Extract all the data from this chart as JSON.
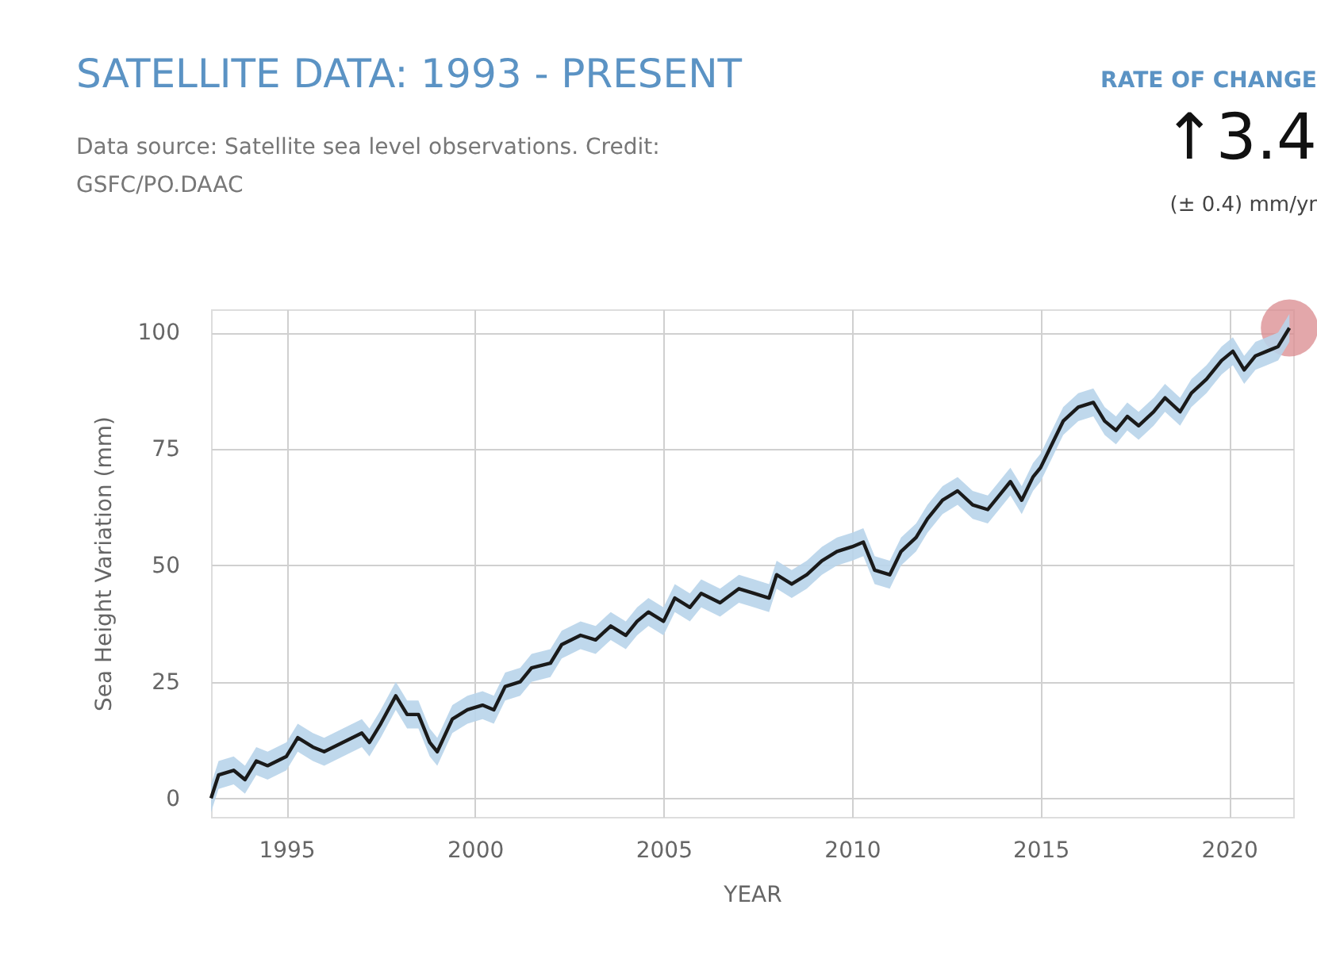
{
  "chart_data": {
    "type": "line",
    "title": "SATELLITE DATA: 1993 - PRESENT",
    "subtitle": "Data source: Satellite sea level observations. Credit: GSFC/PO.DAAC",
    "xlabel": "YEAR",
    "ylabel": "Sea Height Variation (mm)",
    "annotations": [
      "RATE OF CHANGE",
      "↑3.4",
      "(± 0.4) mm/yr"
    ],
    "series": [
      {
        "type": "line",
        "color": "#1a1a1a",
        "x": [
          1993.0,
          1993.2,
          1993.6,
          1993.9,
          1994.2,
          1994.5,
          1995.0,
          1995.3,
          1995.7,
          1996.0,
          1996.5,
          1997.0,
          1997.2,
          1997.5,
          1997.9,
          1998.2,
          1998.5,
          1998.8,
          1999.0,
          1999.4,
          1999.8,
          2000.2,
          2000.5,
          2000.8,
          2001.2,
          2001.5,
          2002.0,
          2002.3,
          2002.8,
          2003.2,
          2003.6,
          2004.0,
          2004.3,
          2004.6,
          2005.0,
          2005.3,
          2005.7,
          2006.0,
          2006.5,
          2007.0,
          2007.4,
          2007.8,
          2008.0,
          2008.4,
          2008.8,
          2009.2,
          2009.6,
          2010.0,
          2010.3,
          2010.6,
          2011.0,
          2011.3,
          2011.7,
          2012.0,
          2012.4,
          2012.8,
          2013.2,
          2013.6,
          2013.9,
          2014.2,
          2014.5,
          2014.8,
          2015.0,
          2015.3,
          2015.6,
          2016.0,
          2016.4,
          2016.7,
          2017.0,
          2017.3,
          2017.6,
          2018.0,
          2018.3,
          2018.7,
          2019.0,
          2019.4,
          2019.8,
          2020.1,
          2020.4,
          2020.7,
          2021.0,
          2021.3,
          2021.6
        ],
        "values": [
          0,
          5,
          6,
          4,
          8,
          7,
          9,
          13,
          11,
          10,
          12,
          14,
          12,
          16,
          22,
          18,
          18,
          12,
          10,
          17,
          19,
          20,
          19,
          24,
          25,
          28,
          29,
          33,
          35,
          34,
          37,
          35,
          38,
          40,
          38,
          43,
          41,
          44,
          42,
          45,
          44,
          43,
          48,
          46,
          48,
          51,
          53,
          54,
          55,
          49,
          48,
          53,
          56,
          60,
          64,
          66,
          63,
          62,
          65,
          68,
          64,
          69,
          71,
          76,
          81,
          84,
          85,
          81,
          79,
          82,
          80,
          83,
          86,
          83,
          87,
          90,
          94,
          96,
          92,
          95,
          96,
          97,
          101
        ],
        "lower": [
          -3,
          2,
          3,
          1,
          5,
          4,
          6,
          10,
          8,
          7,
          9,
          11,
          9,
          13,
          19,
          15,
          15,
          9,
          7,
          14,
          16,
          17,
          16,
          21,
          22,
          25,
          26,
          30,
          32,
          31,
          34,
          32,
          35,
          37,
          35,
          40,
          38,
          41,
          39,
          42,
          41,
          40,
          45,
          43,
          45,
          48,
          50,
          51,
          52,
          46,
          45,
          50,
          53,
          57,
          61,
          63,
          60,
          59,
          62,
          65,
          61,
          66,
          68,
          73,
          78,
          81,
          82,
          78,
          76,
          79,
          77,
          80,
          83,
          80,
          84,
          87,
          91,
          93,
          89,
          92,
          93,
          94,
          98
        ],
        "upper": [
          3,
          8,
          9,
          7,
          11,
          10,
          12,
          16,
          14,
          13,
          15,
          17,
          15,
          19,
          25,
          21,
          21,
          15,
          13,
          20,
          22,
          23,
          22,
          27,
          28,
          31,
          32,
          36,
          38,
          37,
          40,
          38,
          41,
          43,
          41,
          46,
          44,
          47,
          45,
          48,
          47,
          46,
          51,
          49,
          51,
          54,
          56,
          57,
          58,
          52,
          51,
          56,
          59,
          63,
          67,
          69,
          66,
          65,
          68,
          71,
          67,
          72,
          74,
          79,
          84,
          87,
          88,
          84,
          82,
          85,
          83,
          86,
          89,
          86,
          90,
          93,
          97,
          99,
          95,
          98,
          99,
          100,
          104
        ]
      },
      {
        "type": "scatter",
        "color": "#d98a8e",
        "x": [
          2021.6
        ],
        "values": [
          101
        ],
        "marker": "circle"
      }
    ],
    "xlim": [
      1993,
      2021.7
    ],
    "ylim": [
      -4,
      105
    ],
    "xticks": [
      1995,
      2000,
      2005,
      2010,
      2015,
      2020
    ],
    "yticks": [
      0,
      25,
      50,
      75,
      100
    ],
    "grid": true
  }
}
